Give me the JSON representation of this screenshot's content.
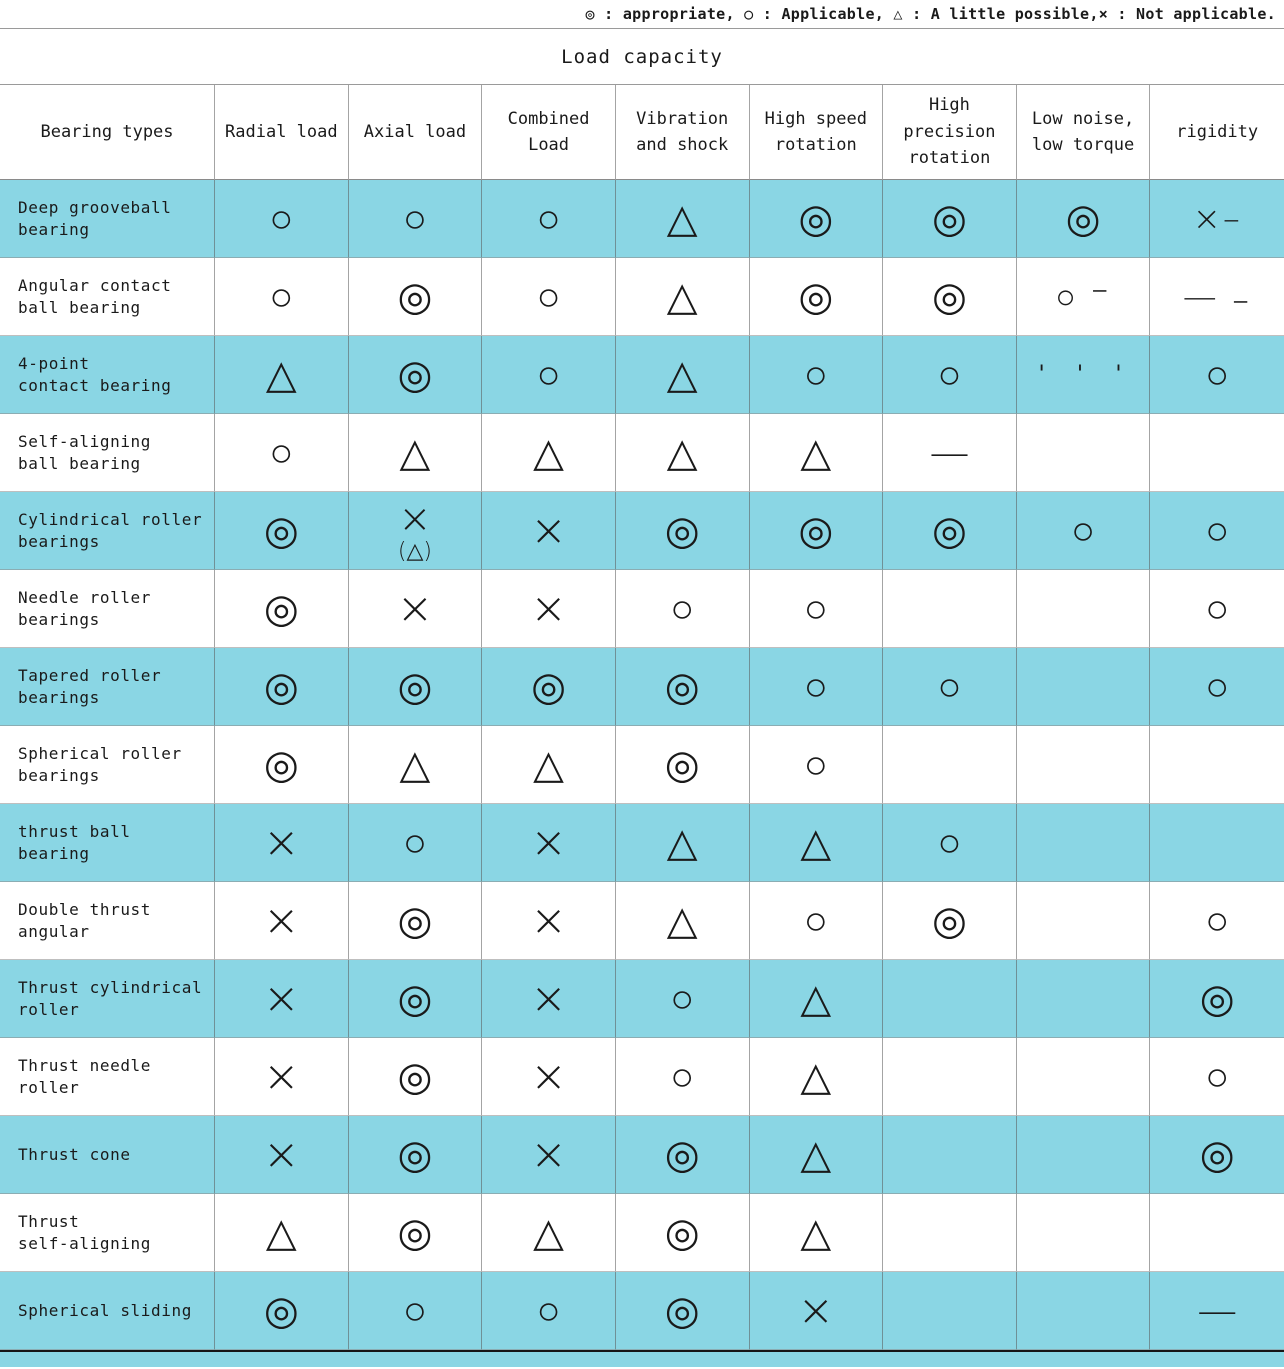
{
  "legend": "◎ : appropriate, ○ : Applicable, △ : A little possible,× : Not applicable.",
  "title": "Load capacity",
  "colors": {
    "stripe": "#8ad6e4",
    "border": "#8a8a8a",
    "text": "#1a1a1a"
  },
  "table": {
    "columns": [
      "Bearing types",
      "Radial load",
      "Axial load",
      "Combined\nLoad",
      "Vibration\nand shock",
      "High speed\nrotation",
      "High precision\nrotation",
      "Low noise,\nlow torque",
      "rigidity"
    ],
    "rows": [
      {
        "label": "Deep grooveball\nbearing",
        "cells": [
          "○",
          "○",
          "○",
          "△",
          "◎",
          "◎",
          "◎",
          "×–"
        ]
      },
      {
        "label": "Angular contact\nball bearing",
        "cells": [
          "○",
          "◎",
          "○",
          "△",
          "◎",
          "◎",
          "○ ⁻",
          "— ₋"
        ]
      },
      {
        "label": "4-point\ncontact bearing",
        "cells": [
          "△",
          "◎",
          "○",
          "△",
          "○",
          "○",
          "' ' '",
          "○"
        ]
      },
      {
        "label": "Self-aligning\nball bearing",
        "cells": [
          "○",
          "△",
          "△",
          "△",
          "△",
          "—",
          "",
          ""
        ]
      },
      {
        "label": "Cylindrical roller\nbearings",
        "cells": [
          "◎",
          "×\n(△)",
          "×",
          "◎",
          "◎",
          "◎",
          "○",
          "○"
        ]
      },
      {
        "label": "Needle roller\nbearings",
        "cells": [
          "◎",
          "×",
          "×",
          "○",
          "○",
          "",
          "",
          "○"
        ]
      },
      {
        "label": "Tapered roller\nbearings",
        "cells": [
          "◎",
          "◎",
          "◎",
          "◎",
          "○",
          "○",
          "",
          "○"
        ]
      },
      {
        "label": "Spherical roller\nbearings",
        "cells": [
          "◎",
          "△",
          "△",
          "◎",
          "○",
          "",
          "",
          ""
        ]
      },
      {
        "label": "thrust ball\nbearing",
        "cells": [
          "×",
          "○",
          "×",
          "△",
          "△",
          "○",
          "",
          ""
        ]
      },
      {
        "label": "Double thrust\nangular",
        "cells": [
          "×",
          "◎",
          "×",
          "△",
          "○",
          "◎",
          "",
          "○"
        ]
      },
      {
        "label": "Thrust cylindrical\nroller",
        "cells": [
          "×",
          "◎",
          "×",
          "○",
          "△",
          "",
          "",
          "◎"
        ]
      },
      {
        "label": "Thrust needle\nroller",
        "cells": [
          "×",
          "◎",
          "×",
          "○",
          "△",
          "",
          "",
          "○"
        ]
      },
      {
        "label": "Thrust cone",
        "cells": [
          "×",
          "◎",
          "×",
          "◎",
          "△",
          "",
          "",
          "◎"
        ]
      },
      {
        "label": "Thrust\nself-aligning",
        "cells": [
          "△",
          "◎",
          "△",
          "◎",
          "△",
          "",
          "",
          ""
        ]
      },
      {
        "label": "Spherical sliding",
        "cells": [
          "◎",
          "○",
          "○",
          "◎",
          "×",
          "",
          "",
          "—"
        ]
      }
    ]
  }
}
